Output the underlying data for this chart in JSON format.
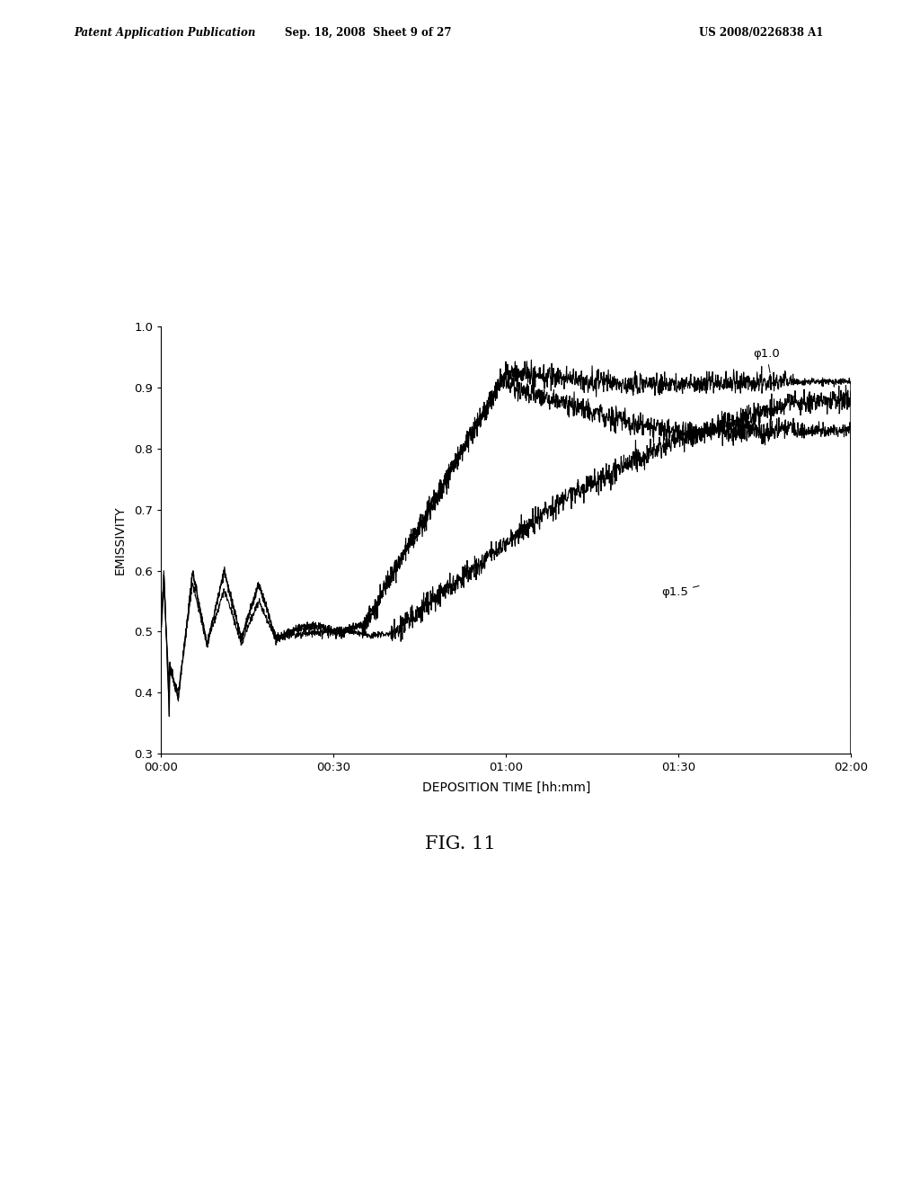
{
  "title": "",
  "xlabel": "DEPOSITION TIME [hh:mm]",
  "ylabel": "EMISSIVITY",
  "xlim_minutes": [
    0,
    120
  ],
  "ylim": [
    0.3,
    1.0
  ],
  "yticks": [
    0.3,
    0.4,
    0.5,
    0.6,
    0.7,
    0.8,
    0.9,
    1.0
  ],
  "xticks_minutes": [
    0,
    30,
    60,
    90,
    120
  ],
  "xtick_labels": [
    "00:00",
    "00:30",
    "01:00",
    "01:30",
    "02:00"
  ],
  "fig_caption": "FIG. 11",
  "header_left": "Patent Application Publication",
  "header_mid": "Sep. 18, 2008  Sheet 9 of 27",
  "header_right": "US 2008/0226838 A1",
  "line_color": "#000000",
  "background_color": "#ffffff"
}
